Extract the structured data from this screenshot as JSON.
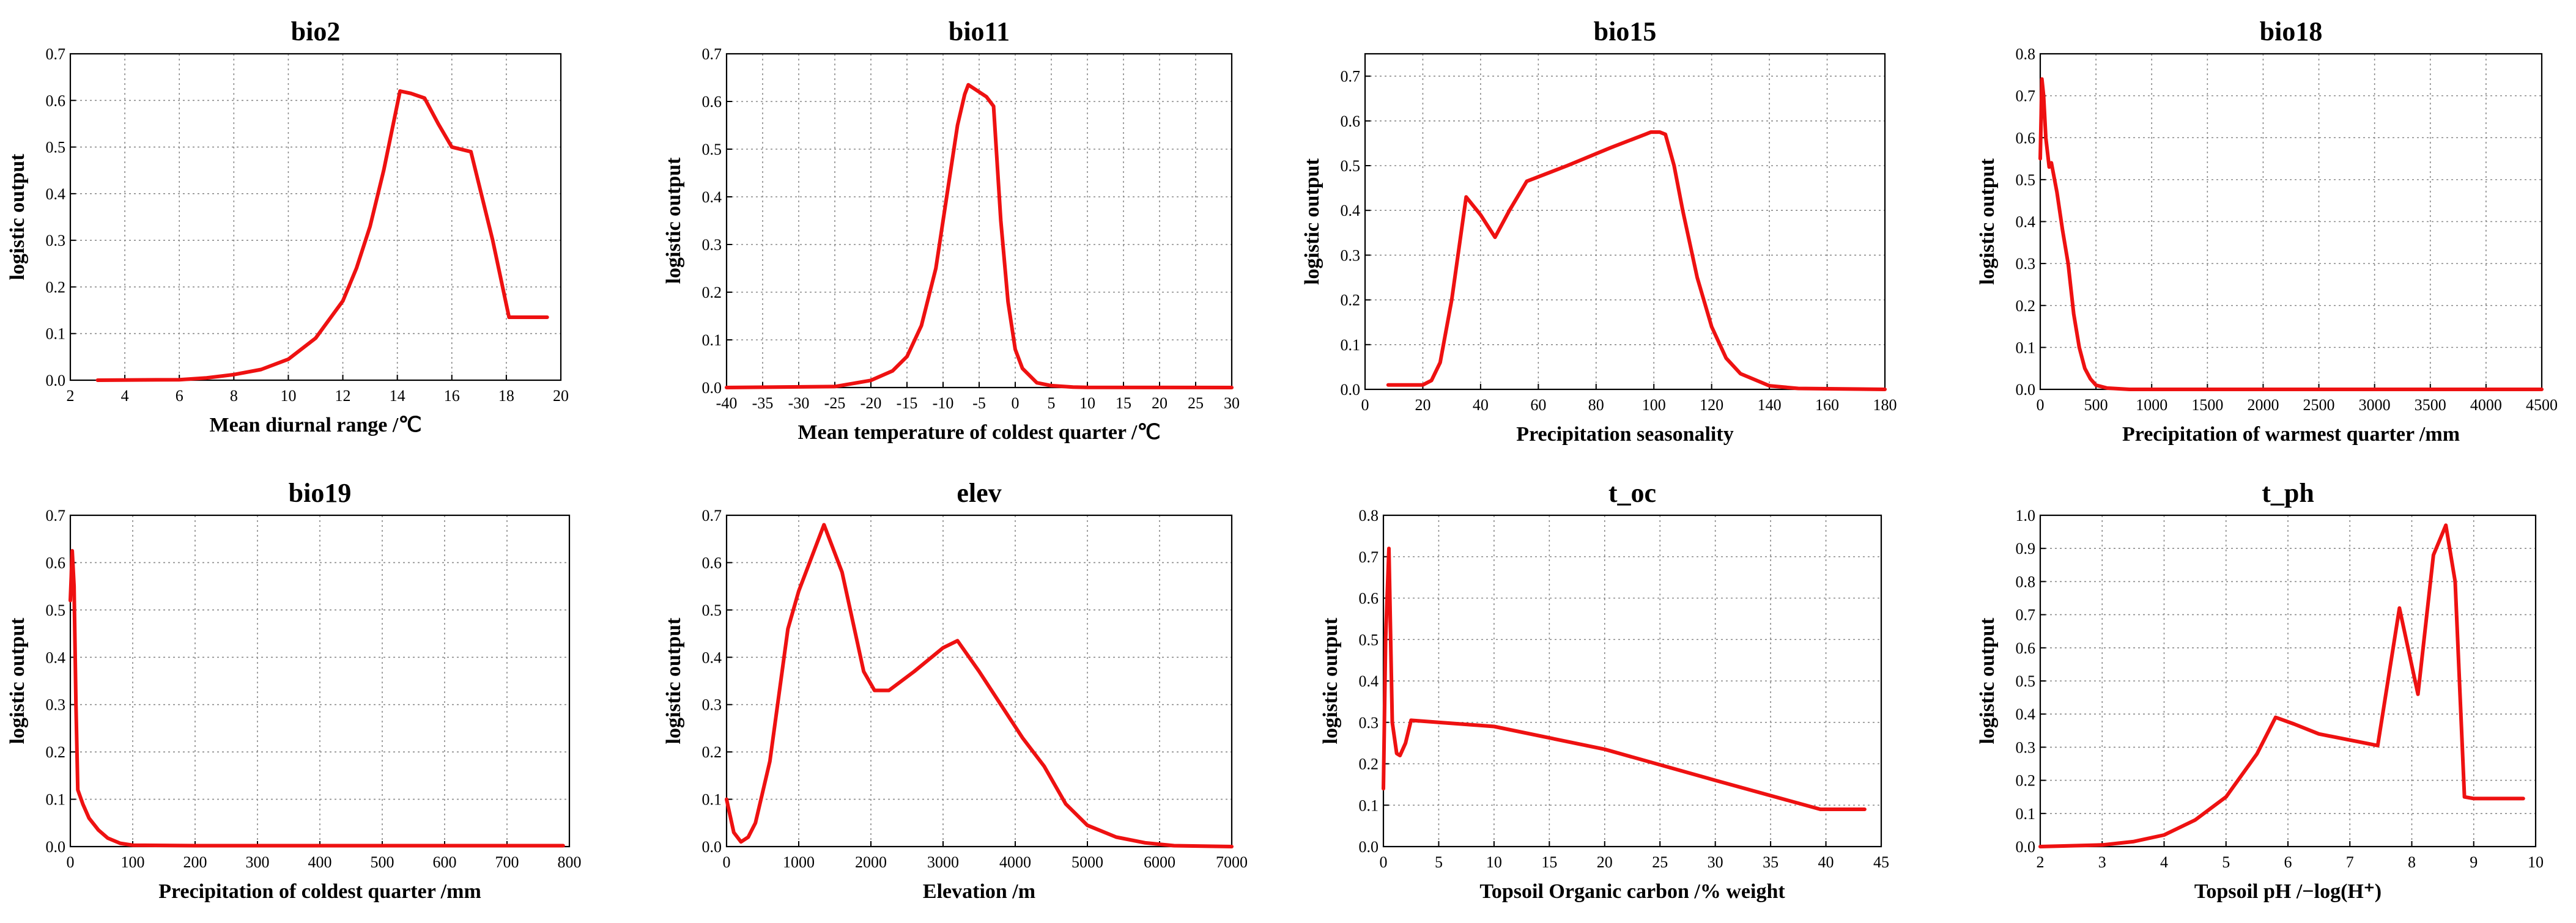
{
  "colors": {
    "curve": "#ee1111",
    "grid": "#8a8a8a",
    "axis": "#000000"
  },
  "chart_data": [
    {
      "type": "line",
      "title": "bio2",
      "xlabel": "Mean diurnal range /℃",
      "ylabel": "logistic output",
      "xlim": [
        2,
        20
      ],
      "ylim": [
        0,
        0.7
      ],
      "xticks": [
        "2",
        "4",
        "6",
        "8",
        "10",
        "12",
        "14",
        "16",
        "18",
        "20"
      ],
      "yticks": [
        "0.0",
        "0.1",
        "0.2",
        "0.3",
        "0.4",
        "0.5",
        "0.6",
        "0.7"
      ],
      "x": [
        3,
        6,
        7,
        8,
        9,
        10,
        11,
        12,
        12.5,
        13,
        13.5,
        14.1,
        14.5,
        15,
        15.5,
        16,
        16.7,
        17.5,
        18.1,
        19.5
      ],
      "y": [
        0,
        0.001,
        0.005,
        0.012,
        0.023,
        0.045,
        0.09,
        0.17,
        0.24,
        0.33,
        0.45,
        0.62,
        0.615,
        0.605,
        0.55,
        0.5,
        0.49,
        0.3,
        0.135,
        0.135
      ]
    },
    {
      "type": "line",
      "title": "bio11",
      "xlabel": "Mean temperature of coldest quarter /℃",
      "ylabel": "logistic output",
      "xlim": [
        -40,
        30
      ],
      "ylim": [
        0,
        0.7
      ],
      "xticks": [
        "-40",
        "-35",
        "-30",
        "-25",
        "-20",
        "-15",
        "-10",
        "-5",
        "0",
        "5",
        "10",
        "15",
        "20",
        "25",
        "30"
      ],
      "yticks": [
        "0.0",
        "0.1",
        "0.2",
        "0.3",
        "0.4",
        "0.5",
        "0.6",
        "0.7"
      ],
      "x": [
        -40,
        -25,
        -20,
        -17,
        -15,
        -13,
        -11,
        -10,
        -9,
        -8,
        -7,
        -6.5,
        -5.5,
        -4,
        -3,
        -2,
        -1,
        0,
        1,
        3,
        5,
        8,
        10,
        30
      ],
      "y": [
        0,
        0.002,
        0.015,
        0.035,
        0.065,
        0.13,
        0.25,
        0.35,
        0.45,
        0.55,
        0.615,
        0.635,
        0.625,
        0.61,
        0.59,
        0.35,
        0.18,
        0.08,
        0.04,
        0.01,
        0.004,
        0.001,
        0.0003,
        0
      ]
    },
    {
      "type": "line",
      "title": "bio15",
      "xlabel": "Precipitation seasonality",
      "ylabel": "logistic output",
      "xlim": [
        0,
        180
      ],
      "ylim": [
        0,
        0.75
      ],
      "xticks": [
        "0",
        "20",
        "40",
        "60",
        "80",
        "100",
        "120",
        "140",
        "160",
        "180"
      ],
      "yticks": [
        "0.0",
        "0.1",
        "0.2",
        "0.3",
        "0.4",
        "0.5",
        "0.6",
        "0.7"
      ],
      "x": [
        8,
        20,
        23,
        26,
        30,
        35,
        40,
        45,
        50,
        56,
        70,
        85,
        97,
        99,
        102,
        104,
        107,
        110,
        115,
        120,
        125,
        130,
        140,
        150,
        180
      ],
      "y": [
        0.01,
        0.01,
        0.02,
        0.06,
        0.2,
        0.43,
        0.39,
        0.34,
        0.4,
        0.465,
        0.5,
        0.54,
        0.57,
        0.575,
        0.575,
        0.57,
        0.5,
        0.4,
        0.25,
        0.14,
        0.07,
        0.035,
        0.008,
        0.002,
        0
      ]
    },
    {
      "type": "line",
      "title": "bio18",
      "xlabel": "Precipitation of warmest quarter /mm",
      "ylabel": "logistic output",
      "xlim": [
        0,
        4500
      ],
      "ylim": [
        0,
        0.8
      ],
      "xticks": [
        "0",
        "500",
        "1000",
        "1500",
        "2000",
        "2500",
        "3000",
        "3500",
        "4000",
        "4500"
      ],
      "yticks": [
        "0.0",
        "0.1",
        "0.2",
        "0.3",
        "0.4",
        "0.5",
        "0.6",
        "0.7",
        "0.8"
      ],
      "x": [
        0,
        15,
        30,
        50,
        80,
        100,
        150,
        200,
        250,
        300,
        350,
        400,
        450,
        500,
        600,
        800,
        1200,
        4500
      ],
      "y": [
        0.55,
        0.74,
        0.7,
        0.6,
        0.53,
        0.54,
        0.47,
        0.38,
        0.3,
        0.18,
        0.1,
        0.05,
        0.025,
        0.01,
        0.003,
        0,
        0,
        0
      ]
    },
    {
      "type": "line",
      "title": "bio19",
      "xlabel": "Precipitation of coldest quarter /mm",
      "ylabel": "logistic output",
      "xlim": [
        0,
        800
      ],
      "ylim": [
        0,
        0.7
      ],
      "xticks": [
        "0",
        "100",
        "200",
        "300",
        "400",
        "500",
        "600",
        "700",
        "800"
      ],
      "yticks": [
        "0.0",
        "0.1",
        "0.2",
        "0.3",
        "0.4",
        "0.5",
        "0.6",
        "0.7"
      ],
      "x": [
        0,
        3,
        6,
        9,
        12,
        20,
        30,
        45,
        60,
        80,
        100,
        200,
        790
      ],
      "y": [
        0.52,
        0.625,
        0.55,
        0.3,
        0.12,
        0.09,
        0.06,
        0.035,
        0.018,
        0.007,
        0.003,
        0.002,
        0.002
      ]
    },
    {
      "type": "line",
      "title": "elev",
      "xlabel": "Elevation /m",
      "ylabel": "logistic output",
      "xlim": [
        0,
        7000
      ],
      "ylim": [
        0,
        0.7
      ],
      "xticks": [
        "0",
        "1000",
        "2000",
        "3000",
        "4000",
        "5000",
        "6000",
        "7000"
      ],
      "yticks": [
        "0.0",
        "0.1",
        "0.2",
        "0.3",
        "0.4",
        "0.5",
        "0.6",
        "0.7"
      ],
      "x": [
        0,
        100,
        200,
        300,
        400,
        600,
        850,
        1000,
        1350,
        1600,
        1900,
        2050,
        2250,
        2600,
        3000,
        3200,
        3500,
        3800,
        4100,
        4400,
        4700,
        5000,
        5400,
        5800,
        6200,
        7000
      ],
      "y": [
        0.1,
        0.03,
        0.01,
        0.02,
        0.05,
        0.18,
        0.46,
        0.54,
        0.68,
        0.58,
        0.37,
        0.33,
        0.33,
        0.37,
        0.42,
        0.435,
        0.37,
        0.3,
        0.23,
        0.17,
        0.09,
        0.045,
        0.02,
        0.008,
        0.002,
        0
      ]
    },
    {
      "type": "line",
      "title": "t_oc",
      "xlabel": "Topsoil Organic carbon /% weight",
      "ylabel": "logistic output",
      "xlim": [
        0,
        45
      ],
      "ylim": [
        0,
        0.8
      ],
      "xticks": [
        "0",
        "5",
        "10",
        "15",
        "20",
        "25",
        "30",
        "35",
        "40",
        "45"
      ],
      "yticks": [
        "0.0",
        "0.1",
        "0.2",
        "0.3",
        "0.4",
        "0.5",
        "0.6",
        "0.7",
        "0.8"
      ],
      "x": [
        0,
        0.2,
        0.5,
        0.8,
        1.2,
        1.5,
        2,
        2.5,
        10,
        20,
        30,
        39.5,
        43.5
      ],
      "y": [
        0.14,
        0.5,
        0.72,
        0.3,
        0.225,
        0.22,
        0.25,
        0.305,
        0.29,
        0.235,
        0.16,
        0.09,
        0.09
      ]
    },
    {
      "type": "line",
      "title": "t_ph",
      "xlabel": "Topsoil pH /−log(H⁺)",
      "ylabel": "logistic output",
      "xlim": [
        2,
        10
      ],
      "ylim": [
        0,
        1.0
      ],
      "xticks": [
        "2",
        "3",
        "4",
        "5",
        "6",
        "7",
        "8",
        "9",
        "10"
      ],
      "yticks": [
        "0.0",
        "0.1",
        "0.2",
        "0.3",
        "0.4",
        "0.5",
        "0.6",
        "0.7",
        "0.8",
        "0.9",
        "1.0"
      ],
      "x": [
        2,
        3,
        3.5,
        4,
        4.5,
        5,
        5.5,
        5.8,
        6.1,
        6.5,
        7.45,
        7.8,
        8.1,
        8.35,
        8.55,
        8.7,
        8.85,
        9.0,
        9.8
      ],
      "y": [
        0,
        0.005,
        0.015,
        0.035,
        0.08,
        0.15,
        0.28,
        0.39,
        0.37,
        0.34,
        0.305,
        0.72,
        0.46,
        0.88,
        0.97,
        0.8,
        0.15,
        0.145,
        0.145
      ]
    }
  ]
}
